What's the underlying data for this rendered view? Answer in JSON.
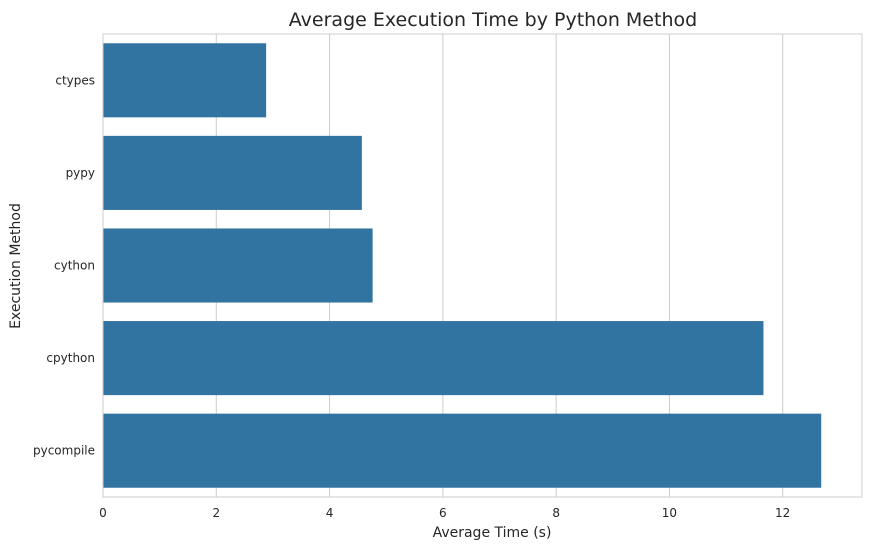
{
  "chart_data": {
    "type": "bar",
    "orientation": "horizontal",
    "title": "Average Execution Time by Python Method",
    "xlabel": "Average Time (s)",
    "ylabel": "Execution Method",
    "categories": [
      "ctypes",
      "pypy",
      "cython",
      "cpython",
      "pycompile"
    ],
    "values": [
      2.88,
      4.57,
      4.76,
      11.66,
      12.68
    ],
    "xlim": [
      0,
      13.4
    ],
    "xticks": [
      0,
      2,
      4,
      6,
      8,
      10,
      12
    ],
    "grid": true,
    "bar_color": "#3274a1",
    "grid_color": "#cccccc",
    "spine_color": "#cccccc"
  }
}
